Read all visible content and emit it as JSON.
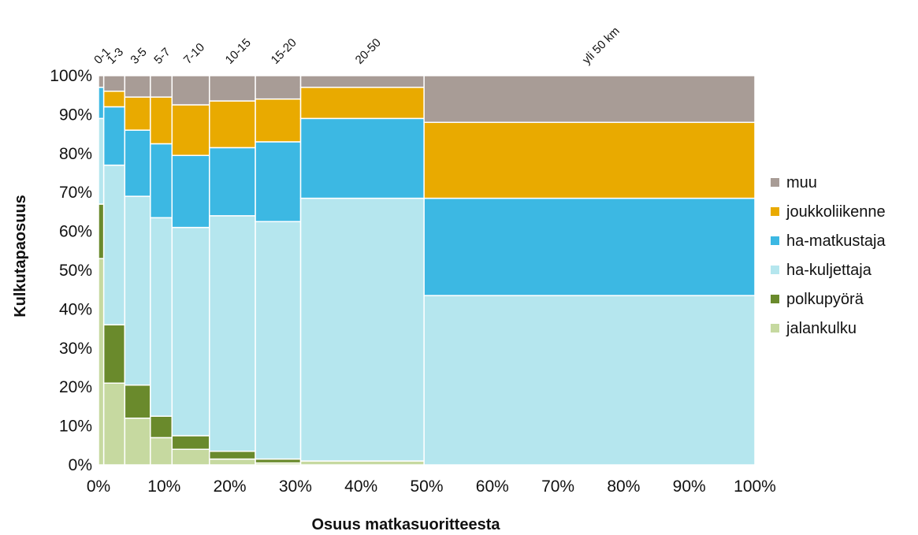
{
  "chart_data": {
    "type": "mekko",
    "title": "",
    "xlabel": "Osuus matkasuoritteesta",
    "ylabel": "Kulkutapaosuus",
    "xlim": [
      0,
      100
    ],
    "ylim": [
      0,
      100
    ],
    "x_ticks": [
      "0%",
      "10%",
      "20%",
      "30%",
      "40%",
      "50%",
      "60%",
      "70%",
      "80%",
      "90%",
      "100%"
    ],
    "y_ticks": [
      "0%",
      "10%",
      "20%",
      "30%",
      "40%",
      "50%",
      "60%",
      "70%",
      "80%",
      "90%",
      "100%"
    ],
    "legend_position": "right",
    "series": [
      {
        "name": "jalankulku",
        "color": "#c6d9a0",
        "values": [
          53,
          21,
          12,
          7,
          4,
          1.5,
          0.5,
          1,
          0
        ]
      },
      {
        "name": "polkupyörä",
        "color": "#6a8a2c",
        "values": [
          14,
          15,
          8.5,
          5.5,
          3.5,
          2,
          1,
          0,
          0
        ]
      },
      {
        "name": "ha-kuljettaja",
        "color": "#b5e6ee",
        "values": [
          22,
          41,
          48.5,
          51,
          53.5,
          60.5,
          61,
          67.5,
          43.5
        ]
      },
      {
        "name": "ha-matkustaja",
        "color": "#3cb8e3",
        "values": [
          8,
          15,
          17,
          19,
          18.5,
          17.5,
          20.5,
          20.5,
          25
        ]
      },
      {
        "name": "joukkoliikenne",
        "color": "#e9aa00",
        "values": [
          0,
          4,
          8.5,
          12,
          13,
          12,
          11,
          8,
          19.5
        ]
      },
      {
        "name": "muu",
        "color": "#a89c96",
        "values": [
          3,
          4,
          5.5,
          5.5,
          7.5,
          6.5,
          6,
          3,
          12
        ]
      }
    ],
    "categories": [
      {
        "label": "0-1",
        "share": 0.8
      },
      {
        "label": "1-3",
        "share": 3.2
      },
      {
        "label": "3-5",
        "share": 3.9
      },
      {
        "label": "5-7",
        "share": 3.3
      },
      {
        "label": "7-10",
        "share": 5.7
      },
      {
        "label": "10-15",
        "share": 7.0
      },
      {
        "label": "15-20",
        "share": 6.9
      },
      {
        "label": "20-50",
        "share": 18.8
      },
      {
        "label": "yli 50 km",
        "share": 50.4
      }
    ]
  }
}
